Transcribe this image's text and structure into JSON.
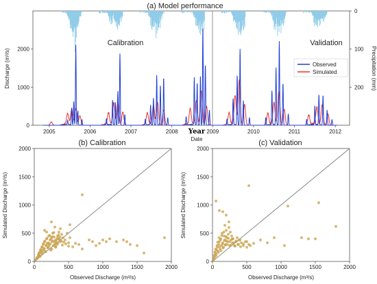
{
  "figure": {
    "top_title": "(a) Model performance",
    "calibration_label": "Calibration",
    "validation_label": "Validation",
    "year_label": "Year",
    "date_label": "Date",
    "bottom_left_title": "(b) Calibration",
    "bottom_right_title": "(c) Validation",
    "colors": {
      "observed": "#1f3fd6",
      "simulated": "#e8302c",
      "precip": "#8ecbe8",
      "scatter": "#c8a04a",
      "one_to_one": "#888888"
    }
  },
  "chart_data": [
    {
      "type": "line",
      "title": "(a) Model performance",
      "xlabel": "Date",
      "ylabel": "Discharge (m³/s)",
      "y2label": "Precipitation (mm)",
      "x_ticks": [
        "2005",
        "2006",
        "2007",
        "2008",
        "2009",
        "2010",
        "2011",
        "2012"
      ],
      "xlim": [
        2004.6,
        2012.35
      ],
      "ylim": [
        0,
        3000
      ],
      "y_ticks": [
        0,
        1000,
        2000
      ],
      "y2lim_inverted": [
        300,
        0
      ],
      "y2_ticks": [
        0,
        100,
        200
      ],
      "split_date": 2009.0,
      "legend": {
        "position": "right",
        "entries": [
          "Observed",
          "Simulated"
        ]
      },
      "series": [
        {
          "name": "Observed",
          "events": [
            [
              2005.45,
              120
            ],
            [
              2005.55,
              450
            ],
            [
              2005.6,
              620
            ],
            [
              2005.65,
              2100
            ],
            [
              2005.7,
              380
            ],
            [
              2005.8,
              150
            ],
            [
              2006.4,
              160
            ],
            [
              2006.55,
              650
            ],
            [
              2006.62,
              590
            ],
            [
              2006.68,
              900
            ],
            [
              2006.73,
              1880
            ],
            [
              2006.85,
              280
            ],
            [
              2007.35,
              150
            ],
            [
              2007.48,
              520
            ],
            [
              2007.55,
              700
            ],
            [
              2007.63,
              1300
            ],
            [
              2007.72,
              1050
            ],
            [
              2007.8,
              1250
            ],
            [
              2007.9,
              200
            ],
            [
              2008.35,
              220
            ],
            [
              2008.55,
              1250
            ],
            [
              2008.62,
              1100
            ],
            [
              2008.7,
              1300
            ],
            [
              2008.76,
              2600
            ],
            [
              2008.82,
              1600
            ],
            [
              2008.92,
              400
            ],
            [
              2009.35,
              150
            ],
            [
              2009.5,
              700
            ],
            [
              2009.6,
              1300
            ],
            [
              2009.67,
              2000
            ],
            [
              2009.75,
              650
            ],
            [
              2009.9,
              200
            ],
            [
              2010.3,
              200
            ],
            [
              2010.45,
              900
            ],
            [
              2010.55,
              1500
            ],
            [
              2010.63,
              2200
            ],
            [
              2010.72,
              1100
            ],
            [
              2010.85,
              300
            ],
            [
              2011.3,
              150
            ],
            [
              2011.5,
              500
            ],
            [
              2011.6,
              800
            ],
            [
              2011.7,
              780
            ],
            [
              2011.8,
              400
            ],
            [
              2011.92,
              150
            ]
          ]
        },
        {
          "name": "Simulated",
          "events": [
            [
              2005.05,
              90
            ],
            [
              2005.45,
              280
            ],
            [
              2005.55,
              380
            ],
            [
              2005.65,
              420
            ],
            [
              2005.75,
              250
            ],
            [
              2006.45,
              300
            ],
            [
              2006.58,
              560
            ],
            [
              2006.68,
              600
            ],
            [
              2006.8,
              350
            ],
            [
              2007.4,
              300
            ],
            [
              2007.55,
              500
            ],
            [
              2007.65,
              580
            ],
            [
              2007.8,
              400
            ],
            [
              2008.45,
              400
            ],
            [
              2008.6,
              620
            ],
            [
              2008.72,
              900
            ],
            [
              2008.85,
              500
            ],
            [
              2009.4,
              300
            ],
            [
              2009.55,
              750
            ],
            [
              2009.65,
              1150
            ],
            [
              2009.78,
              550
            ],
            [
              2010.35,
              300
            ],
            [
              2010.5,
              550
            ],
            [
              2010.62,
              860
            ],
            [
              2010.75,
              420
            ],
            [
              2011.35,
              250
            ],
            [
              2011.55,
              450
            ],
            [
              2011.68,
              520
            ],
            [
              2011.82,
              300
            ]
          ]
        },
        {
          "name": "Precipitation",
          "axis": "y2",
          "events": [
            [
              2005.5,
              30
            ],
            [
              2005.6,
              45
            ],
            [
              2005.65,
              55
            ],
            [
              2005.7,
              30
            ],
            [
              2006.5,
              30
            ],
            [
              2006.65,
              40
            ],
            [
              2006.75,
              25
            ],
            [
              2007.5,
              35
            ],
            [
              2007.6,
              50
            ],
            [
              2007.7,
              30
            ],
            [
              2008.6,
              35
            ],
            [
              2008.7,
              45
            ],
            [
              2008.8,
              40
            ],
            [
              2009.55,
              40
            ],
            [
              2009.65,
              55
            ],
            [
              2009.75,
              35
            ],
            [
              2010.5,
              35
            ],
            [
              2010.6,
              50
            ],
            [
              2010.7,
              40
            ],
            [
              2011.5,
              30
            ],
            [
              2011.6,
              35
            ],
            [
              2011.7,
              25
            ]
          ]
        }
      ]
    },
    {
      "type": "scatter",
      "title": "(b) Calibration",
      "xlabel": "Observed Discharge (m³/s)",
      "ylabel": "Simulated Discharge (m³/s)",
      "xlim": [
        0,
        2000
      ],
      "ylim": [
        0,
        2000
      ],
      "x_ticks": [
        0,
        500,
        1000,
        1500,
        2000
      ],
      "y_ticks": [
        0,
        500,
        1000,
        1500,
        2000
      ],
      "one_to_one_line": true,
      "x": [
        20,
        35,
        50,
        60,
        70,
        80,
        90,
        100,
        110,
        120,
        130,
        140,
        150,
        160,
        170,
        180,
        190,
        200,
        210,
        220,
        230,
        240,
        250,
        260,
        270,
        280,
        290,
        300,
        310,
        320,
        330,
        340,
        350,
        360,
        380,
        400,
        420,
        450,
        480,
        500,
        40,
        55,
        65,
        75,
        85,
        95,
        105,
        115,
        125,
        135,
        145,
        155,
        165,
        175,
        185,
        195,
        205,
        215,
        225,
        235,
        245,
        255,
        265,
        275,
        285,
        295,
        305,
        315,
        325,
        335,
        345,
        355,
        365,
        375,
        395,
        410,
        430,
        460,
        500,
        520,
        560,
        600,
        650,
        700,
        800,
        850,
        900,
        950,
        1000,
        1050,
        1100,
        1200,
        1300,
        1350,
        1400,
        1500,
        1600,
        1900,
        700,
        520,
        300,
        150,
        250,
        180,
        380
      ],
      "y": [
        30,
        60,
        80,
        120,
        150,
        100,
        200,
        180,
        250,
        150,
        300,
        220,
        350,
        180,
        280,
        400,
        320,
        250,
        450,
        300,
        380,
        200,
        420,
        350,
        500,
        280,
        430,
        330,
        250,
        380,
        300,
        450,
        400,
        520,
        350,
        480,
        420,
        380,
        500,
        330,
        50,
        70,
        110,
        160,
        90,
        210,
        140,
        260,
        190,
        320,
        230,
        360,
        170,
        290,
        410,
        240,
        330,
        270,
        460,
        310,
        390,
        220,
        440,
        360,
        510,
        290,
        370,
        260,
        340,
        410,
        320,
        470,
        390,
        430,
        360,
        290,
        340,
        310,
        270,
        420,
        260,
        320,
        300,
        220,
        380,
        350,
        280,
        320,
        380,
        350,
        400,
        350,
        380,
        350,
        300,
        280,
        150,
        420,
        1180,
        650,
        610,
        550,
        700,
        520,
        580
      ]
    },
    {
      "type": "scatter",
      "title": "(c) Validation",
      "xlabel": "Observed Discharge (m³/s)",
      "ylabel": "Simulated Discharge (m³/s)",
      "xlim": [
        0,
        2000
      ],
      "ylim": [
        0,
        2000
      ],
      "x_ticks": [
        0,
        500,
        1000,
        1500,
        2000
      ],
      "y_ticks": [
        0,
        500,
        1000,
        1500,
        2000
      ],
      "one_to_one_line": true,
      "x": [
        10,
        20,
        30,
        40,
        50,
        60,
        70,
        80,
        90,
        100,
        110,
        120,
        130,
        140,
        150,
        160,
        170,
        180,
        190,
        200,
        210,
        220,
        230,
        240,
        250,
        260,
        270,
        280,
        290,
        300,
        320,
        340,
        360,
        380,
        400,
        420,
        450,
        480,
        500,
        530,
        15,
        25,
        35,
        45,
        55,
        65,
        75,
        85,
        95,
        105,
        115,
        125,
        135,
        145,
        155,
        165,
        175,
        185,
        195,
        205,
        215,
        230,
        250,
        270,
        290,
        310,
        330,
        350,
        370,
        390,
        410,
        450,
        500,
        550,
        600,
        700,
        800,
        900,
        1050,
        1100,
        1300,
        1400,
        1500,
        1550,
        1800,
        50,
        100,
        150,
        200,
        530,
        240,
        180
      ],
      "y": [
        20,
        50,
        80,
        150,
        100,
        200,
        250,
        180,
        300,
        350,
        220,
        400,
        280,
        500,
        330,
        250,
        450,
        380,
        300,
        550,
        420,
        350,
        480,
        600,
        280,
        520,
        380,
        450,
        330,
        400,
        280,
        350,
        420,
        300,
        380,
        330,
        280,
        350,
        250,
        300,
        60,
        110,
        170,
        220,
        130,
        280,
        340,
        160,
        420,
        260,
        380,
        190,
        460,
        310,
        240,
        520,
        370,
        290,
        440,
        360,
        300,
        410,
        350,
        290,
        400,
        330,
        270,
        360,
        300,
        380,
        260,
        310,
        350,
        280,
        320,
        380,
        330,
        420,
        280,
        980,
        420,
        400,
        400,
        1040,
        620,
        1070,
        900,
        880,
        820,
        1340,
        700,
        640
      ]
    }
  ]
}
